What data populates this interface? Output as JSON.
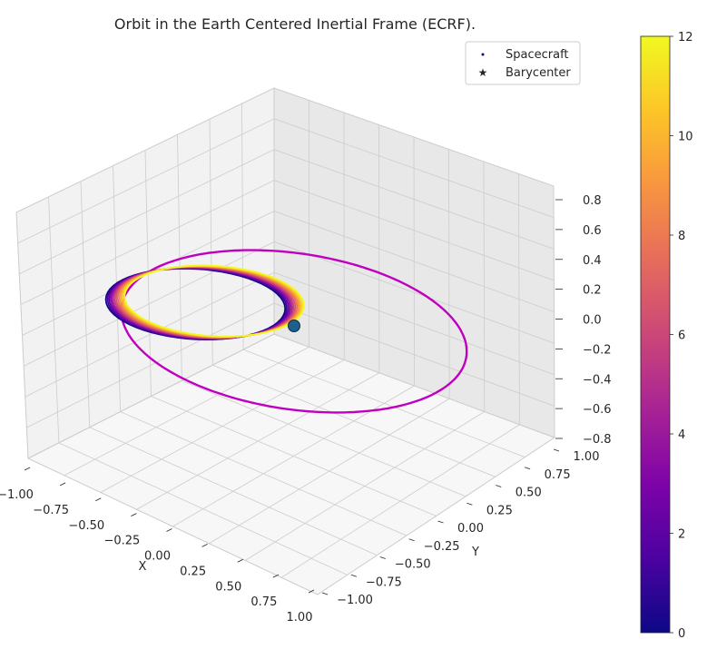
{
  "chart_data": {
    "type": "line3d",
    "title": "Orbit in the Earth Centered Inertial Frame (ECRF).",
    "xlabel": "X",
    "ylabel": "Y",
    "zlabel": "",
    "xlim": [
      -1.0,
      1.0
    ],
    "ylim": [
      -1.0,
      1.0
    ],
    "zlim": [
      -0.8,
      0.8
    ],
    "x_ticks": [
      "−1.00",
      "−0.75",
      "−0.50",
      "−0.25",
      "0.00",
      "0.25",
      "0.50",
      "0.75",
      "1.00"
    ],
    "y_ticks": [
      "−1.00",
      "−0.75",
      "−0.50",
      "−0.25",
      "0.00",
      "0.25",
      "0.50",
      "0.75",
      "1.00"
    ],
    "z_ticks": [
      "−0.8",
      "−0.6",
      "−0.4",
      "−0.2",
      "0.0",
      "0.2",
      "0.4",
      "0.6",
      "0.8"
    ],
    "legend": {
      "placement": "top-right",
      "entries": [
        {
          "label": "Spacecraft",
          "marker": "dot",
          "color": "#0d0887"
        },
        {
          "label": "Barycenter",
          "marker": "star",
          "color": "#c000c0"
        }
      ]
    },
    "colorbar": {
      "colormap": "plasma",
      "min": 0,
      "max": 12,
      "ticks": [
        "0",
        "2",
        "4",
        "6",
        "8",
        "10",
        "12"
      ]
    },
    "barycenter_orbit": {
      "radius": 1.0,
      "z": 0.0,
      "color": "#c000c0"
    },
    "earth": {
      "x": 0.0,
      "y": 0.0,
      "z": 0.0,
      "color": "#1f5f8b"
    },
    "spacecraft_orbit": {
      "center": [
        -0.55,
        -0.1
      ],
      "semi_axis_a": 0.52,
      "semi_axis_b": 0.5,
      "revolutions": 12,
      "t_range": [
        0,
        12
      ]
    },
    "grid": true
  }
}
